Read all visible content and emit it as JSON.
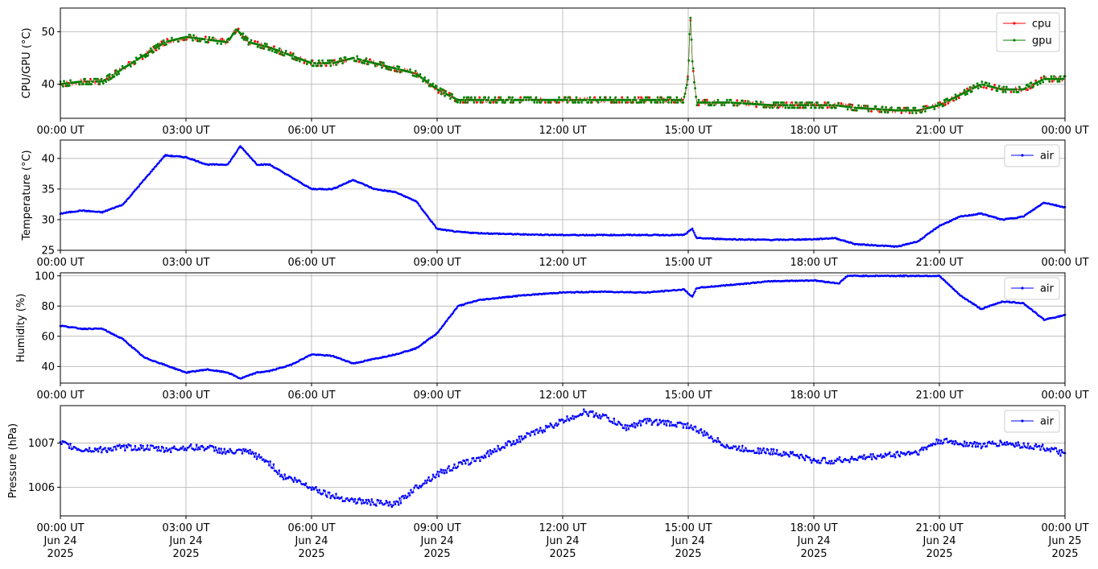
{
  "colors": {
    "cpu": "#ff0000",
    "gpu": "#008000",
    "air": "#0000ff",
    "grid": "#b0b0b0"
  },
  "x_ticks": [
    "00:00 UT",
    "03:00 UT",
    "06:00 UT",
    "09:00 UT",
    "12:00 UT",
    "15:00 UT",
    "18:00 UT",
    "21:00 UT",
    "00:00 UT"
  ],
  "x_ticks_bottom": [
    [
      "00:00 UT",
      "Jun 24",
      "2025"
    ],
    [
      "03:00 UT",
      "Jun 24",
      "2025"
    ],
    [
      "06:00 UT",
      "Jun 24",
      "2025"
    ],
    [
      "09:00 UT",
      "Jun 24",
      "2025"
    ],
    [
      "12:00 UT",
      "Jun 24",
      "2025"
    ],
    [
      "15:00 UT",
      "Jun 24",
      "2025"
    ],
    [
      "18:00 UT",
      "Jun 24",
      "2025"
    ],
    [
      "21:00 UT",
      "Jun 24",
      "2025"
    ],
    [
      "00:00 UT",
      "Jun 25",
      "2025"
    ]
  ],
  "chart_data": [
    {
      "type": "line",
      "ylabel": "CPU/GPU (°C)",
      "x_range": [
        "2025-06-24 00:00 UT",
        "2025-06-25 00:00 UT"
      ],
      "ylim": [
        33.5,
        54.5
      ],
      "yticks": [
        40,
        50
      ],
      "grid": true,
      "legend": "top-right",
      "x_hours": [
        0,
        0.5,
        1.0,
        1.5,
        2.0,
        2.5,
        3.0,
        3.5,
        4.0,
        4.2,
        4.5,
        5.0,
        5.5,
        6.0,
        6.5,
        7.0,
        7.5,
        8.0,
        8.5,
        9.0,
        9.5,
        10,
        11,
        12,
        13,
        14,
        14.9,
        15.0,
        15.05,
        15.1,
        15.2,
        16,
        17,
        18,
        18.5,
        19,
        20,
        20.5,
        21,
        21.5,
        22,
        22.5,
        23,
        23.5,
        24
      ],
      "series": [
        {
          "name": "cpu",
          "values": [
            40,
            40.5,
            40.5,
            43,
            45.5,
            48,
            49,
            48.5,
            48,
            50.5,
            48,
            47,
            45.5,
            44,
            44,
            45,
            44,
            43,
            42,
            39,
            37,
            37,
            37,
            37,
            37,
            37,
            37,
            42,
            53.5,
            44,
            36.5,
            36.5,
            36,
            36,
            36,
            35.5,
            35,
            35,
            36,
            38,
            40,
            39,
            39,
            41,
            41
          ]
        },
        {
          "name": "gpu",
          "values": [
            40,
            40.5,
            40.5,
            43,
            45.5,
            48,
            49,
            48.5,
            48,
            50.5,
            48,
            47,
            45.5,
            44,
            44,
            45,
            44,
            43,
            42,
            39,
            37,
            37,
            37,
            37,
            37,
            37,
            37,
            42,
            53.5,
            44,
            36.5,
            36.5,
            36,
            36,
            36,
            35.5,
            35,
            35,
            36,
            38,
            40,
            39,
            39,
            41,
            41
          ]
        }
      ]
    },
    {
      "type": "line",
      "ylabel": "Temperature (°C)",
      "x_range": [
        "2025-06-24 00:00 UT",
        "2025-06-25 00:00 UT"
      ],
      "ylim": [
        25,
        43
      ],
      "yticks": [
        25,
        30,
        35,
        40
      ],
      "grid": true,
      "legend": "top-right",
      "x_hours": [
        0,
        0.5,
        1.0,
        1.5,
        2.0,
        2.5,
        3.0,
        3.5,
        4.0,
        4.3,
        4.7,
        5.0,
        5.5,
        6.0,
        6.5,
        7.0,
        7.5,
        8.0,
        8.5,
        9.0,
        9.5,
        10,
        11,
        12,
        13,
        14,
        14.9,
        15.1,
        15.2,
        16,
        17,
        18,
        18.5,
        19,
        20,
        20.5,
        21,
        21.5,
        22,
        22.5,
        23,
        23.5,
        24
      ],
      "series": [
        {
          "name": "air",
          "values": [
            31,
            31.5,
            31.2,
            32.5,
            36.5,
            40.5,
            40.2,
            39,
            39,
            42,
            39,
            39,
            37,
            35,
            35,
            36.5,
            35,
            34.5,
            33,
            28.5,
            28,
            27.8,
            27.6,
            27.5,
            27.5,
            27.5,
            27.5,
            28.5,
            27,
            26.8,
            26.7,
            26.8,
            27,
            26,
            25.6,
            26.5,
            29,
            30.5,
            31,
            30,
            30.5,
            32.8,
            32
          ]
        }
      ]
    },
    {
      "type": "line",
      "ylabel": "Humidity (%)",
      "x_range": [
        "2025-06-24 00:00 UT",
        "2025-06-25 00:00 UT"
      ],
      "ylim": [
        29,
        102
      ],
      "yticks": [
        40,
        60,
        80,
        100
      ],
      "grid": true,
      "legend": "top-right",
      "x_hours": [
        0,
        0.5,
        1.0,
        1.5,
        2.0,
        2.5,
        3.0,
        3.5,
        4.0,
        4.3,
        4.7,
        5.0,
        5.5,
        6.0,
        6.5,
        7.0,
        7.5,
        8.0,
        8.5,
        9.0,
        9.5,
        10,
        11,
        12,
        13,
        14,
        14.9,
        15.1,
        15.2,
        16,
        17,
        18,
        18.6,
        18.8,
        20,
        21,
        21.5,
        22,
        22.5,
        23,
        23.5,
        24
      ],
      "series": [
        {
          "name": "air",
          "values": [
            67,
            65,
            65,
            58,
            46,
            41,
            36,
            38,
            36,
            32,
            36,
            37,
            41,
            48,
            47,
            42,
            45,
            48,
            52,
            62,
            80,
            84,
            87,
            89,
            89.5,
            89,
            91,
            86,
            92,
            94,
            96.5,
            97,
            95,
            100,
            100,
            100,
            87,
            78,
            83,
            82,
            71,
            74
          ]
        }
      ]
    },
    {
      "type": "line",
      "ylabel": "Pressure (hPa)",
      "x_range": [
        "2025-06-24 00:00 UT",
        "2025-06-25 00:00 UT"
      ],
      "ylim": [
        1005.35,
        1007.85
      ],
      "yticks": [
        1006,
        1007
      ],
      "grid": true,
      "legend": "top-right",
      "x_hours": [
        0,
        0.5,
        1.0,
        1.5,
        2.0,
        2.5,
        3.0,
        3.5,
        4.0,
        4.5,
        5.0,
        5.3,
        5.5,
        6.0,
        6.5,
        7.0,
        7.5,
        8.0,
        8.5,
        9.0,
        9.5,
        10,
        10.5,
        11,
        11.5,
        12,
        12.5,
        13,
        13.5,
        14,
        14.5,
        15,
        15.5,
        16,
        16.5,
        17,
        17.5,
        18,
        18.5,
        19,
        19.5,
        20,
        20.5,
        21,
        21.5,
        22,
        22.5,
        23,
        23.5,
        24
      ],
      "series": [
        {
          "name": "air",
          "values": [
            1007.0,
            1006.85,
            1006.85,
            1006.9,
            1006.9,
            1006.85,
            1006.9,
            1006.9,
            1006.8,
            1006.8,
            1006.55,
            1006.25,
            1006.2,
            1006.0,
            1005.8,
            1005.7,
            1005.65,
            1005.6,
            1006.0,
            1006.3,
            1006.5,
            1006.65,
            1006.9,
            1007.1,
            1007.3,
            1007.5,
            1007.7,
            1007.6,
            1007.35,
            1007.5,
            1007.45,
            1007.4,
            1007.15,
            1006.9,
            1006.85,
            1006.8,
            1006.75,
            1006.6,
            1006.6,
            1006.65,
            1006.7,
            1006.75,
            1006.8,
            1007.05,
            1007.0,
            1006.95,
            1007.0,
            1006.95,
            1006.9,
            1006.75
          ]
        }
      ]
    }
  ]
}
